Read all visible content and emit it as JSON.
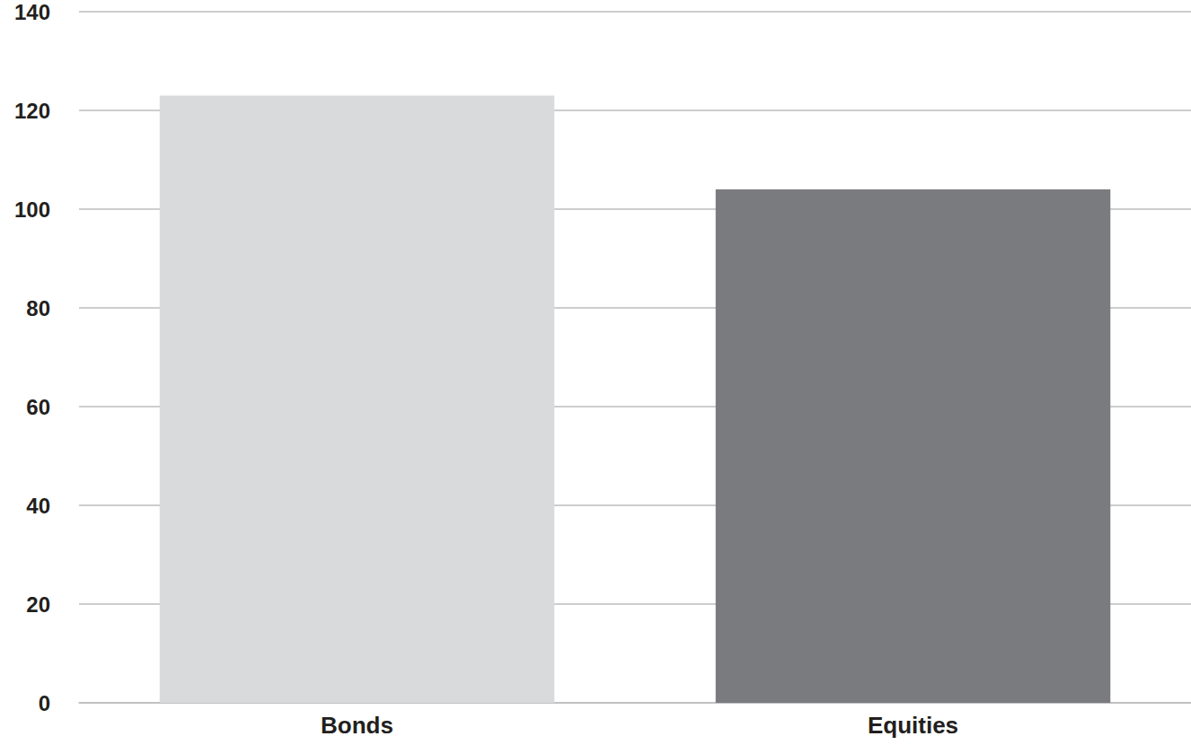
{
  "chart_data": {
    "type": "bar",
    "categories": [
      "Bonds",
      "Equities"
    ],
    "values": [
      123,
      104
    ],
    "colors": [
      "#d9dadc",
      "#7a7b7f"
    ],
    "ylim": [
      0,
      140
    ],
    "yticks": [
      0,
      20,
      40,
      60,
      80,
      100,
      120,
      140
    ],
    "grid": true
  }
}
